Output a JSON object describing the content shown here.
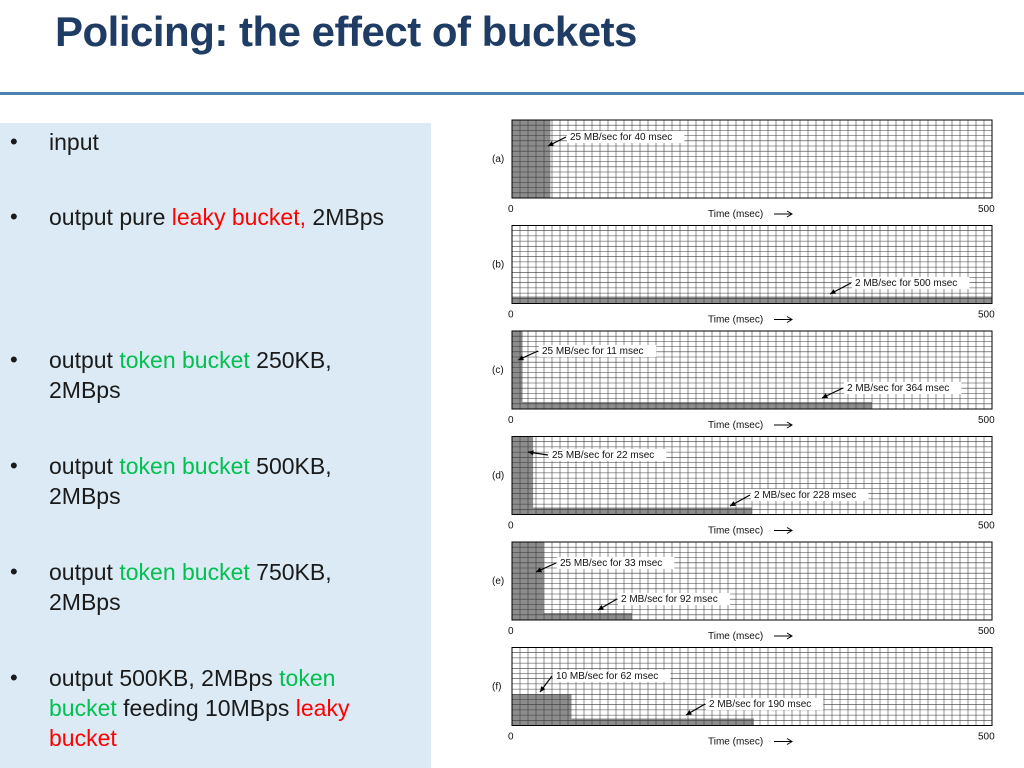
{
  "title": "Policing: the effect of buckets",
  "bullets": [
    {
      "parts": [
        {
          "text": "input",
          "color": "black"
        }
      ]
    },
    {
      "parts": [
        {
          "text": "output pure ",
          "color": "black"
        },
        {
          "text": "leaky bucket,",
          "color": "red"
        },
        {
          "text": " 2MBps",
          "color": "black"
        }
      ]
    },
    {
      "parts": [
        {
          "text": "output ",
          "color": "black"
        },
        {
          "text": "token bucket",
          "color": "green"
        },
        {
          "text": " 250KB, 2MBps",
          "color": "black"
        }
      ]
    },
    {
      "parts": [
        {
          "text": "output ",
          "color": "black"
        },
        {
          "text": "token bucket",
          "color": "green"
        },
        {
          "text": " 500KB, 2MBps",
          "color": "black"
        }
      ]
    },
    {
      "parts": [
        {
          "text": "output ",
          "color": "black"
        },
        {
          "text": "token bucket",
          "color": "green"
        },
        {
          "text": " 750KB, 2MBps",
          "color": "black"
        }
      ]
    },
    {
      "parts": [
        {
          "text": "output 500KB, 2MBps ",
          "color": "black"
        },
        {
          "text": "token bucket",
          "color": "green"
        },
        {
          "text": " feeding 10MBps ",
          "color": "black"
        },
        {
          "text": "leaky bucket",
          "color": "red"
        }
      ]
    }
  ],
  "colors": {
    "black": "#1a1a1a",
    "red": "#ff0000",
    "green": "#00c050"
  },
  "panels": [
    {
      "label": "(a)",
      "x_start": "0",
      "x_end": "500",
      "axis_label": "Time (msec)",
      "segments": [
        {
          "rate_mbps": 25,
          "duration_ms": 40
        }
      ],
      "annotations": [
        "25 MB/sec for 40 msec"
      ]
    },
    {
      "label": "(b)",
      "x_start": "0",
      "x_end": "500",
      "axis_label": "Time (msec)",
      "segments": [
        {
          "rate_mbps": 2,
          "duration_ms": 500
        }
      ],
      "annotations": [
        "2 MB/sec for 500 msec"
      ]
    },
    {
      "label": "(c)",
      "x_start": "0",
      "x_end": "500",
      "axis_label": "Time (msec)",
      "segments": [
        {
          "rate_mbps": 25,
          "duration_ms": 11
        },
        {
          "rate_mbps": 2,
          "duration_ms": 364
        }
      ],
      "annotations": [
        "25 MB/sec for 11 msec",
        "2 MB/sec for 364 msec"
      ]
    },
    {
      "label": "(d)",
      "x_start": "0",
      "x_end": "500",
      "axis_label": "Time (msec)",
      "segments": [
        {
          "rate_mbps": 25,
          "duration_ms": 22
        },
        {
          "rate_mbps": 2,
          "duration_ms": 228
        }
      ],
      "annotations": [
        "25 MB/sec for 22 msec",
        "2 MB/sec for 228 msec"
      ]
    },
    {
      "label": "(e)",
      "x_start": "0",
      "x_end": "500",
      "axis_label": "Time (msec)",
      "segments": [
        {
          "rate_mbps": 25,
          "duration_ms": 33
        },
        {
          "rate_mbps": 2,
          "duration_ms": 92
        }
      ],
      "annotations": [
        "25 MB/sec for 33 msec",
        "2 MB/sec for 92 msec"
      ]
    },
    {
      "label": "(f)",
      "x_start": "0",
      "x_end": "500",
      "axis_label": "Time (msec)",
      "segments": [
        {
          "rate_mbps": 10,
          "duration_ms": 62
        },
        {
          "rate_mbps": 2,
          "duration_ms": 190
        }
      ],
      "annotations": [
        "10 MB/sec for 62 msec",
        "2 MB/sec for 190 msec"
      ]
    }
  ]
}
